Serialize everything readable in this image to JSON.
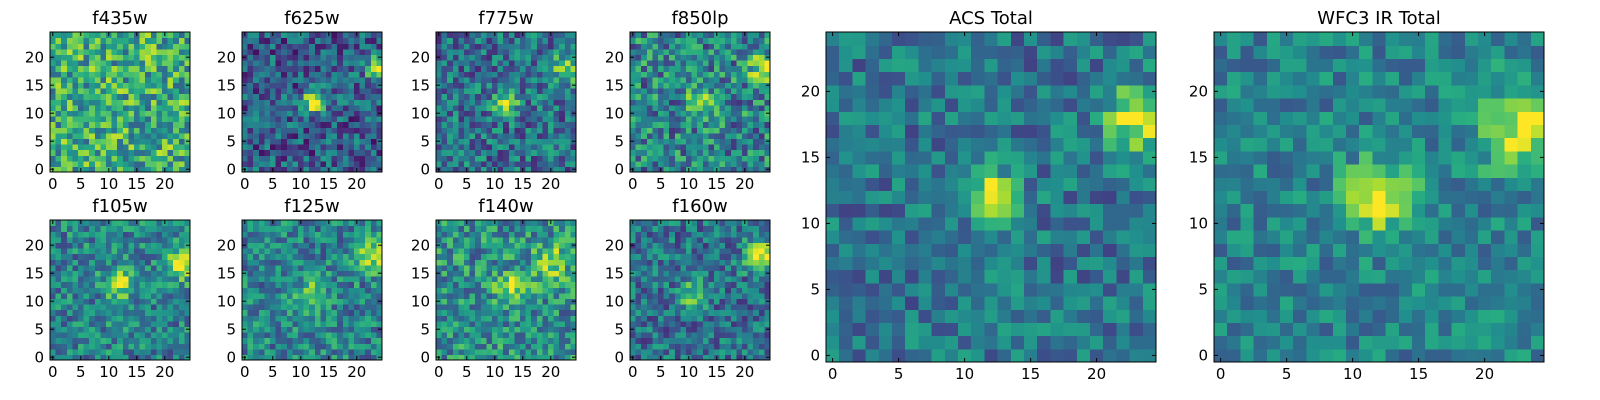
{
  "chart_data": [
    {
      "type": "heatmap",
      "title": "f435w",
      "shape": [
        25,
        25
      ],
      "xlim": [
        0,
        24
      ],
      "ylim": [
        0,
        24
      ],
      "xticks": [
        0,
        5,
        10,
        15,
        20
      ],
      "yticks": [
        0,
        5,
        10,
        15,
        20
      ],
      "colormap": "viridis",
      "noise": 0.3,
      "base": 0.62,
      "sources": []
    },
    {
      "type": "heatmap",
      "title": "f625w",
      "shape": [
        25,
        25
      ],
      "xlim": [
        0,
        24
      ],
      "ylim": [
        0,
        24
      ],
      "xticks": [
        0,
        5,
        10,
        15,
        20
      ],
      "yticks": [
        0,
        5,
        10,
        15,
        20
      ],
      "colormap": "viridis",
      "noise": 0.26,
      "base": 0.3,
      "sources": [
        {
          "x": 12,
          "y": 12,
          "amp": 0.65,
          "sigma": 1.4
        },
        {
          "x": 24,
          "y": 18,
          "amp": 0.6,
          "sigma": 1.6
        }
      ]
    },
    {
      "type": "heatmap",
      "title": "f775w",
      "shape": [
        25,
        25
      ],
      "xlim": [
        0,
        24
      ],
      "ylim": [
        0,
        24
      ],
      "xticks": [
        0,
        5,
        10,
        15,
        20
      ],
      "yticks": [
        0,
        5,
        10,
        15,
        20
      ],
      "colormap": "viridis",
      "noise": 0.26,
      "base": 0.38,
      "sources": [
        {
          "x": 12,
          "y": 12,
          "amp": 0.55,
          "sigma": 1.5
        },
        {
          "x": 23,
          "y": 18,
          "amp": 0.5,
          "sigma": 1.8
        }
      ]
    },
    {
      "type": "heatmap",
      "title": "f850lp",
      "shape": [
        25,
        25
      ],
      "xlim": [
        0,
        24
      ],
      "ylim": [
        0,
        24
      ],
      "xticks": [
        0,
        5,
        10,
        15,
        20
      ],
      "yticks": [
        0,
        5,
        10,
        15,
        20
      ],
      "colormap": "viridis",
      "noise": 0.3,
      "base": 0.45,
      "sources": [
        {
          "x": 12,
          "y": 12,
          "amp": 0.45,
          "sigma": 1.6
        },
        {
          "x": 23,
          "y": 18,
          "amp": 0.45,
          "sigma": 1.8
        }
      ]
    },
    {
      "type": "heatmap",
      "title": "f105w",
      "shape": [
        25,
        25
      ],
      "xlim": [
        0,
        24
      ],
      "ylim": [
        0,
        24
      ],
      "xticks": [
        0,
        5,
        10,
        15,
        20
      ],
      "yticks": [
        0,
        5,
        10,
        15,
        20
      ],
      "colormap": "viridis",
      "noise": 0.24,
      "base": 0.45,
      "sources": [
        {
          "x": 12,
          "y": 13,
          "amp": 0.45,
          "sigma": 1.8
        },
        {
          "x": 23,
          "y": 17,
          "amp": 0.4,
          "sigma": 2.2
        }
      ]
    },
    {
      "type": "heatmap",
      "title": "f125w",
      "shape": [
        25,
        25
      ],
      "xlim": [
        0,
        24
      ],
      "ylim": [
        0,
        24
      ],
      "xticks": [
        0,
        5,
        10,
        15,
        20
      ],
      "yticks": [
        0,
        5,
        10,
        15,
        20
      ],
      "colormap": "viridis",
      "noise": 0.24,
      "base": 0.45,
      "sources": [
        {
          "x": 12,
          "y": 11,
          "amp": 0.45,
          "sigma": 1.8
        },
        {
          "x": 23,
          "y": 18,
          "amp": 0.45,
          "sigma": 2.0
        }
      ]
    },
    {
      "type": "heatmap",
      "title": "f140w",
      "shape": [
        25,
        25
      ],
      "xlim": [
        0,
        24
      ],
      "ylim": [
        0,
        24
      ],
      "xticks": [
        0,
        5,
        10,
        15,
        20
      ],
      "yticks": [
        0,
        5,
        10,
        15,
        20
      ],
      "colormap": "viridis",
      "noise": 0.26,
      "base": 0.5,
      "sources": [
        {
          "x": 13,
          "y": 12,
          "amp": 0.4,
          "sigma": 2.0
        },
        {
          "x": 20,
          "y": 17,
          "amp": 0.35,
          "sigma": 2.2
        }
      ]
    },
    {
      "type": "heatmap",
      "title": "f160w",
      "shape": [
        25,
        25
      ],
      "xlim": [
        0,
        24
      ],
      "ylim": [
        0,
        24
      ],
      "xticks": [
        0,
        5,
        10,
        15,
        20
      ],
      "yticks": [
        0,
        5,
        10,
        15,
        20
      ],
      "colormap": "viridis",
      "noise": 0.24,
      "base": 0.38,
      "sources": [
        {
          "x": 11,
          "y": 11,
          "amp": 0.45,
          "sigma": 1.7
        },
        {
          "x": 23,
          "y": 18,
          "amp": 0.55,
          "sigma": 2.0
        }
      ]
    },
    {
      "type": "heatmap",
      "title": "ACS Total",
      "shape": [
        25,
        25
      ],
      "xlim": [
        0,
        24
      ],
      "ylim": [
        0,
        24
      ],
      "xticks": [
        0,
        5,
        10,
        15,
        20
      ],
      "yticks": [
        0,
        5,
        10,
        15,
        20
      ],
      "colormap": "viridis",
      "noise": 0.2,
      "base": 0.4,
      "sources": [
        {
          "x": 12,
          "y": 12,
          "amp": 0.6,
          "sigma": 1.4
        },
        {
          "x": 23,
          "y": 18,
          "amp": 0.55,
          "sigma": 1.7
        }
      ]
    },
    {
      "type": "heatmap",
      "title": "WFC3 IR Total",
      "shape": [
        25,
        25
      ],
      "xlim": [
        0,
        24
      ],
      "ylim": [
        0,
        24
      ],
      "xticks": [
        0,
        5,
        10,
        15,
        20
      ],
      "yticks": [
        0,
        5,
        10,
        15,
        20
      ],
      "colormap": "viridis",
      "noise": 0.18,
      "base": 0.45,
      "sources": [
        {
          "x": 12,
          "y": 12,
          "amp": 0.55,
          "sigma": 1.8
        },
        {
          "x": 23,
          "y": 17,
          "amp": 0.5,
          "sigma": 2.2
        }
      ]
    }
  ]
}
